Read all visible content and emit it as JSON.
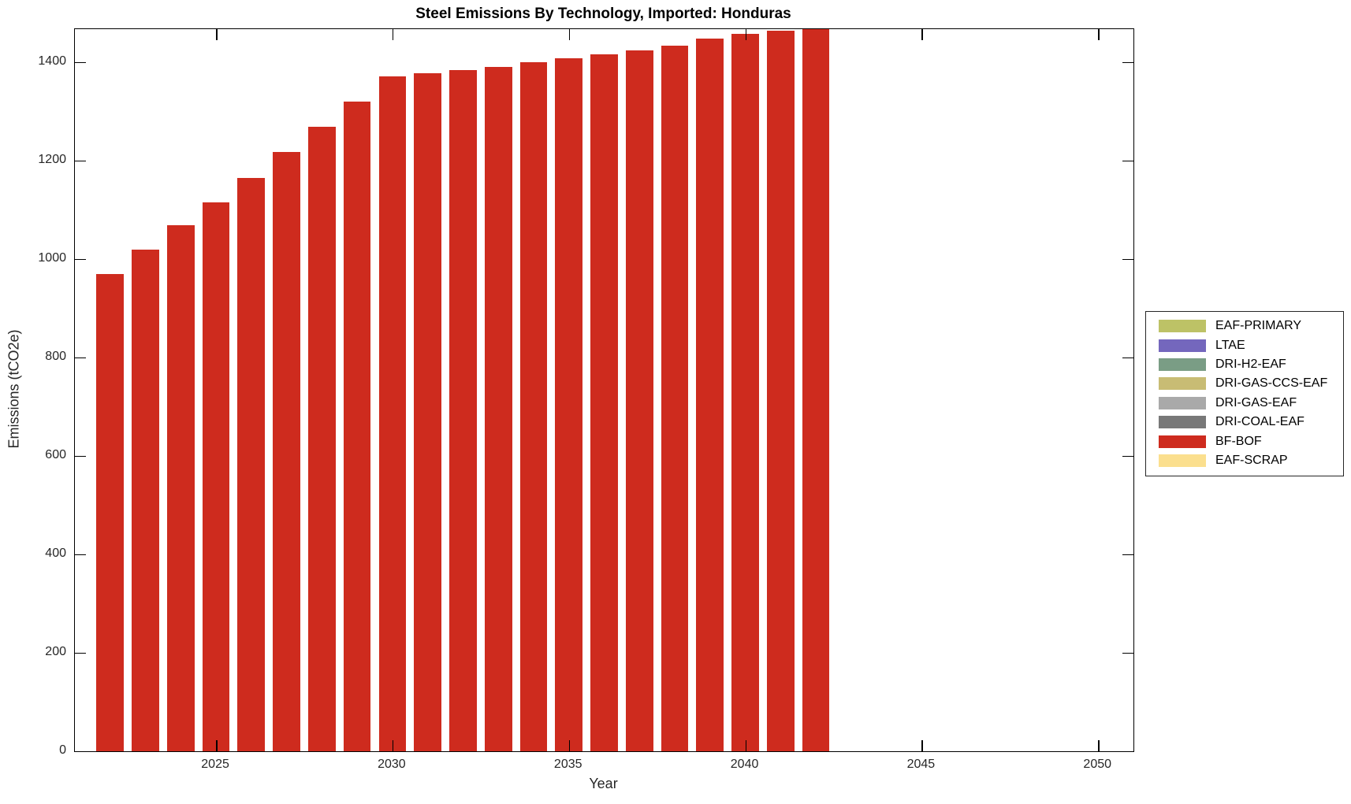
{
  "chart_data": {
    "type": "bar",
    "title": "Steel Emissions By Technology, Imported: Honduras",
    "xlabel": "Year",
    "ylabel": "Emissions (tCO2e)",
    "xlim": [
      2021,
      2051
    ],
    "ylim": [
      0,
      1467
    ],
    "x_ticks": [
      2025,
      2030,
      2035,
      2040,
      2045,
      2050
    ],
    "y_ticks": [
      0,
      200,
      400,
      600,
      800,
      1000,
      1200,
      1400
    ],
    "grid": false,
    "bar_width_years": 0.775,
    "legend_position": "right-outside",
    "x": [
      2022,
      2023,
      2024,
      2025,
      2026,
      2027,
      2028,
      2029,
      2030,
      2031,
      2032,
      2033,
      2034,
      2035,
      2036,
      2037,
      2038,
      2039,
      2040,
      2041,
      2042
    ],
    "series": [
      {
        "name": "BF-BOF",
        "color": "#CE2B1E",
        "values": [
          970,
          1019,
          1069,
          1115,
          1165,
          1218,
          1269,
          1320,
          1371,
          1377,
          1384,
          1390,
          1400,
          1408,
          1416,
          1424,
          1434,
          1448,
          1458,
          1464,
          1467
        ]
      }
    ],
    "legend": [
      {
        "label": "EAF-PRIMARY",
        "color": "#BDC266"
      },
      {
        "label": "LTAE",
        "color": "#7467BD"
      },
      {
        "label": "DRI-H2-EAF",
        "color": "#7A9D85"
      },
      {
        "label": "DRI-GAS-CCS-EAF",
        "color": "#C8BC74"
      },
      {
        "label": "DRI-GAS-EAF",
        "color": "#A9A9A9"
      },
      {
        "label": "DRI-COAL-EAF",
        "color": "#787878"
      },
      {
        "label": "BF-BOF",
        "color": "#CE2B1E"
      },
      {
        "label": "EAF-SCRAP",
        "color": "#FBDF8E"
      }
    ]
  }
}
